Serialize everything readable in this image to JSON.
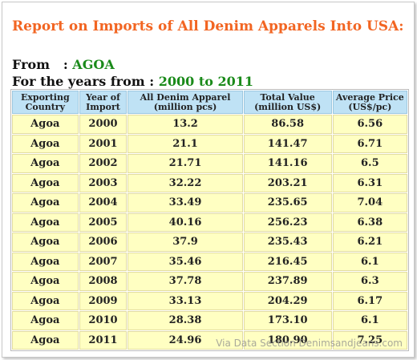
{
  "report": {
    "title": "Report on Imports of All Denim Apparels Into USA:",
    "from_label": "From   : ",
    "from_value": "AGOA",
    "years_label": "For the years from : ",
    "years_value": "2000 to 2011"
  },
  "table": {
    "columns": [
      [
        "Exporting",
        "Country"
      ],
      [
        "Year of",
        "Import"
      ],
      [
        "All Denim Apparel",
        "(million pcs)"
      ],
      [
        "Total Value",
        "(million US$)"
      ],
      [
        "Average Price",
        "(US$/pc)"
      ]
    ],
    "rows": [
      [
        "Agoa",
        "2000",
        "13.2",
        "86.58",
        "6.56"
      ],
      [
        "Agoa",
        "2001",
        "21.1",
        "141.47",
        "6.71"
      ],
      [
        "Agoa",
        "2002",
        "21.71",
        "141.16",
        "6.5"
      ],
      [
        "Agoa",
        "2003",
        "32.22",
        "203.21",
        "6.31"
      ],
      [
        "Agoa",
        "2004",
        "33.49",
        "235.65",
        "7.04"
      ],
      [
        "Agoa",
        "2005",
        "40.16",
        "256.23",
        "6.38"
      ],
      [
        "Agoa",
        "2006",
        "37.9",
        "235.43",
        "6.21"
      ],
      [
        "Agoa",
        "2007",
        "35.46",
        "216.45",
        "6.1"
      ],
      [
        "Agoa",
        "2008",
        "37.78",
        "237.89",
        "6.3"
      ],
      [
        "Agoa",
        "2009",
        "33.13",
        "204.29",
        "6.17"
      ],
      [
        "Agoa",
        "2010",
        "28.38",
        "173.10",
        "6.1"
      ],
      [
        "Agoa",
        "2011",
        "24.96",
        "180.90",
        "7.25"
      ]
    ]
  },
  "watermark": "Via Data Section Denimsandjeans.com",
  "colors": {
    "title": "#f26522",
    "highlight_green": "#1a8a1a",
    "header_bg": "#bfe2f5",
    "cell_bg": "#ffffc2"
  }
}
